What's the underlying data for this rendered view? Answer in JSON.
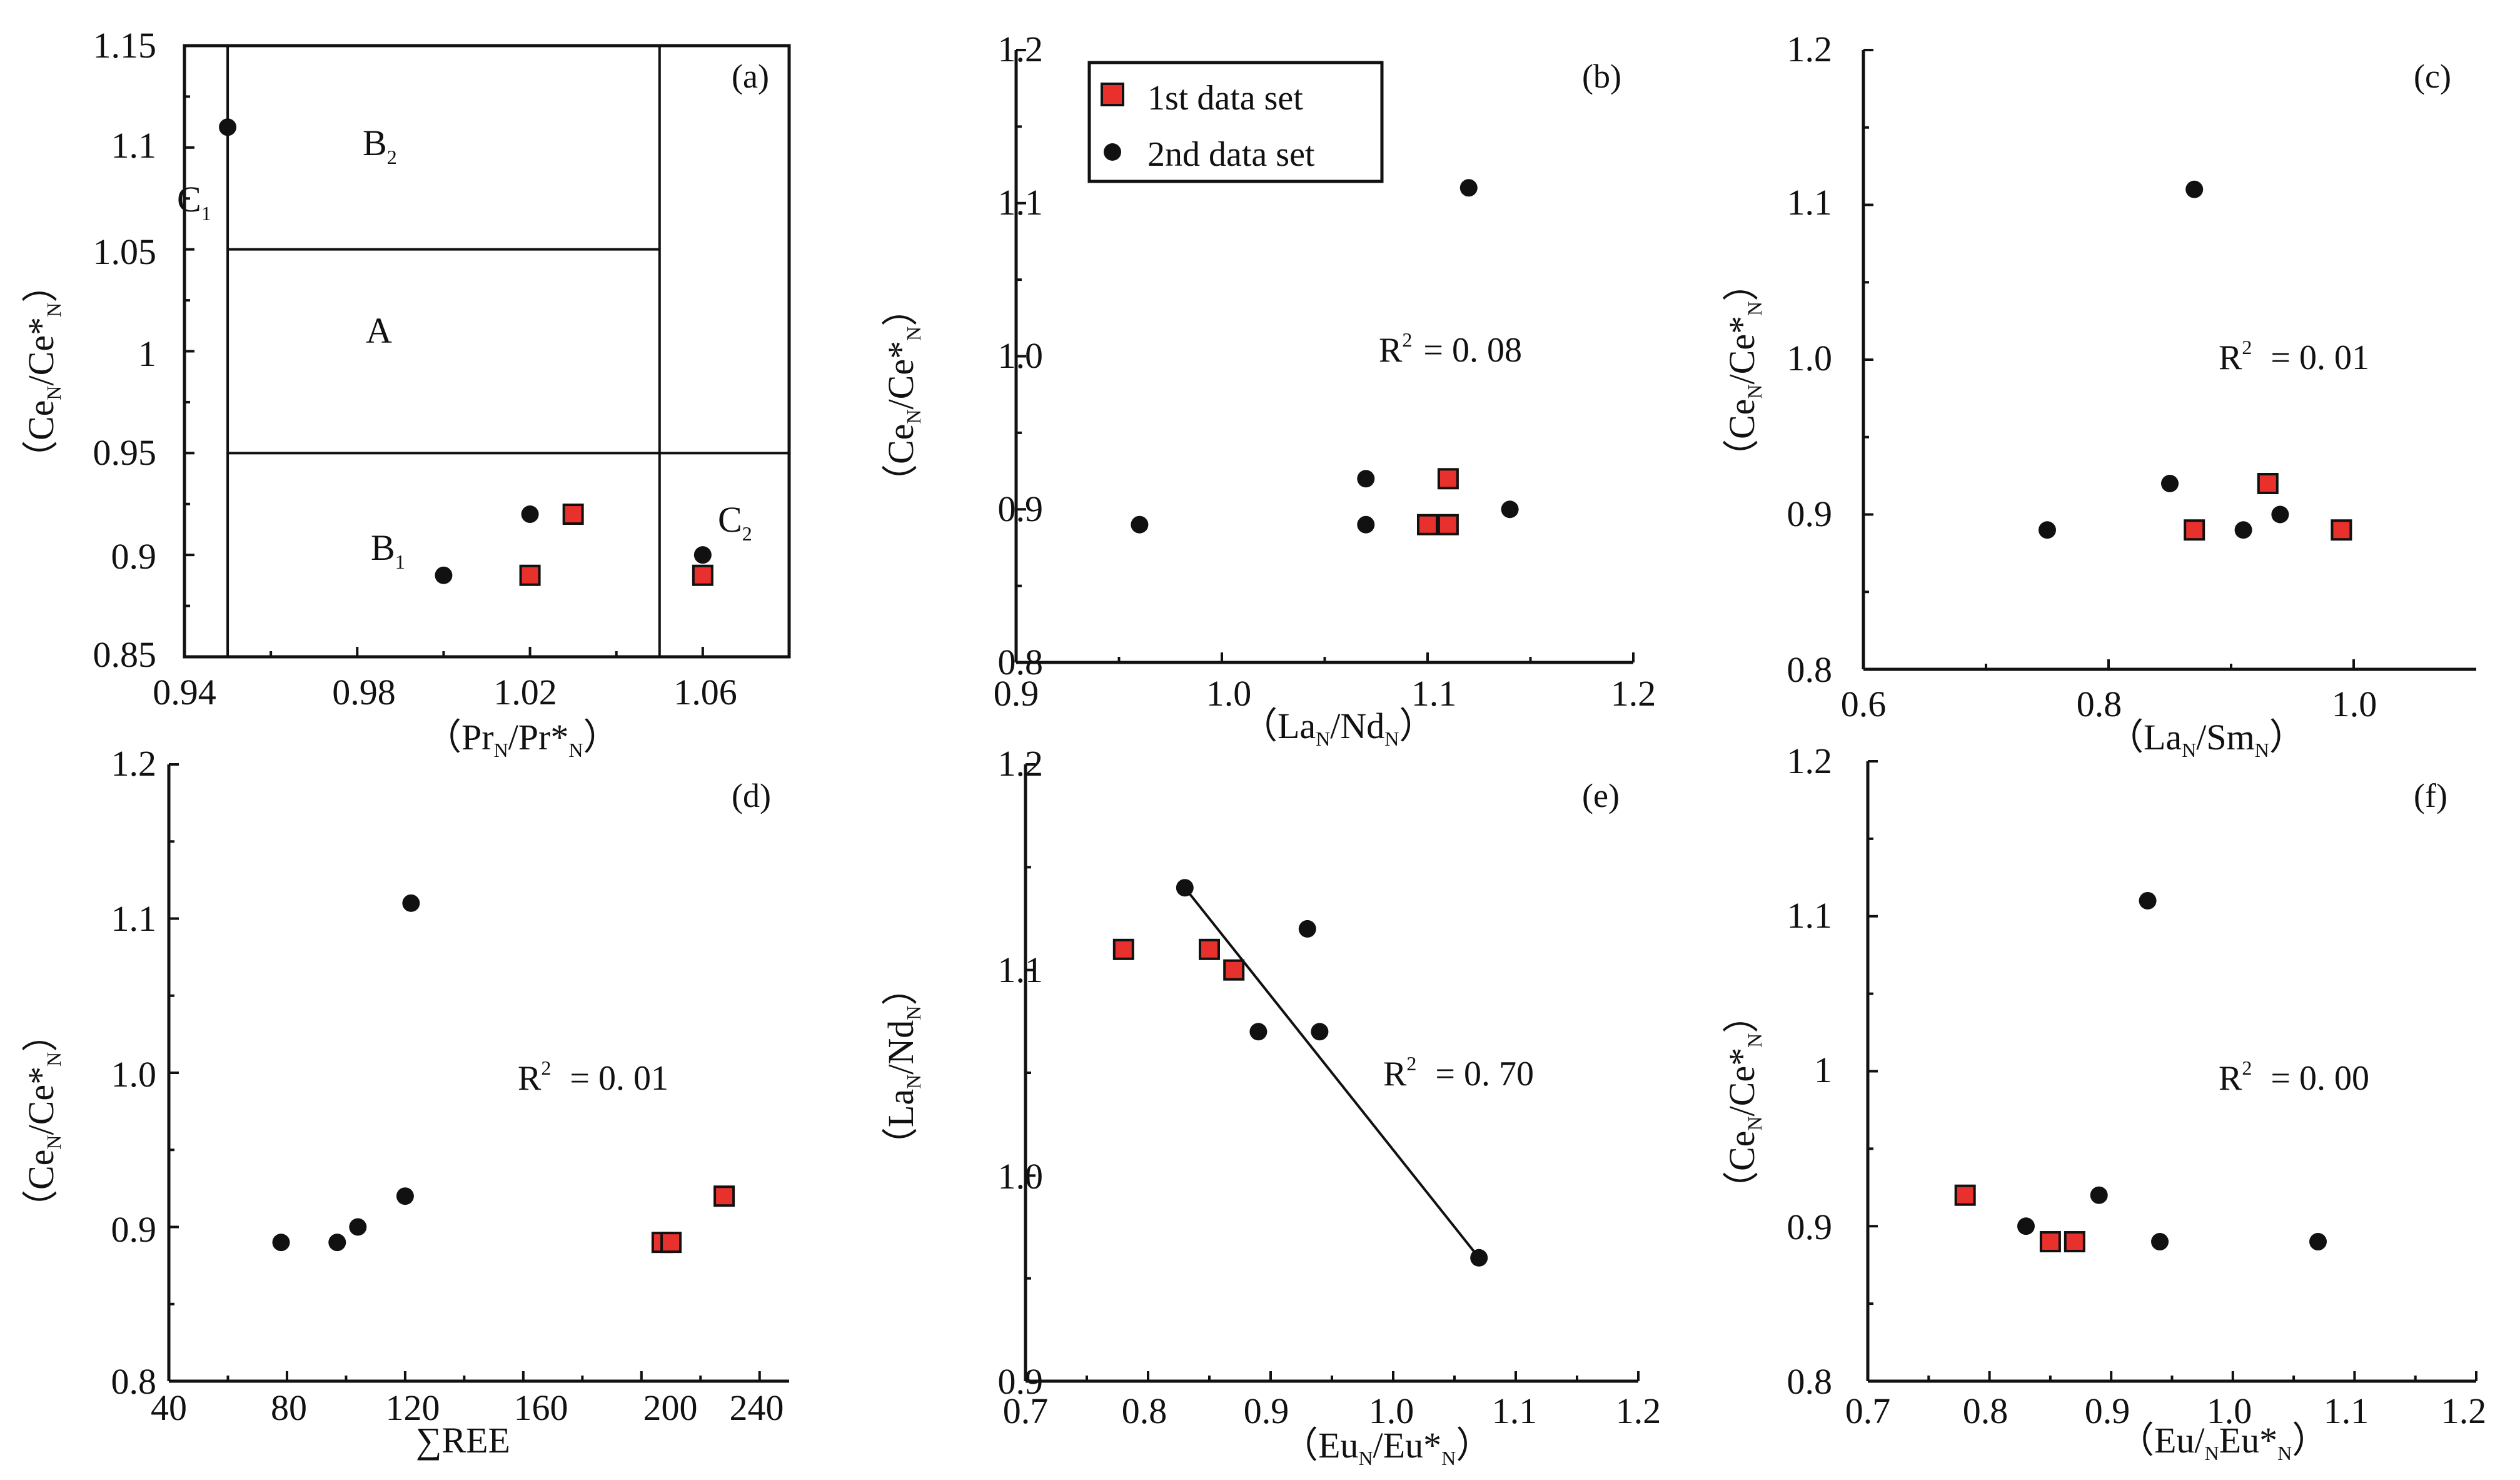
{
  "colors": {
    "first_set": "#e8302c",
    "second_set": "#111111",
    "axis": "#111111"
  },
  "legend": {
    "first": "1st data set",
    "second": "2nd data set"
  },
  "chart_data": [
    {
      "id": "a",
      "type": "scatter",
      "panel_label": "(a)",
      "xlabel": "（PrN/Pr*N）",
      "ylabel": "（CeN/Ce*N）",
      "xlim": [
        0.94,
        1.08
      ],
      "ylim": [
        0.85,
        1.15
      ],
      "xticks": [
        "0.94",
        "0.98",
        "1.02",
        "1.06"
      ],
      "yticks": [
        "0.85",
        "0.9",
        "0.95",
        "1",
        "1.05",
        "1.1",
        "1.15"
      ],
      "zones": {
        "A": "A",
        "B1": "B1",
        "B2": "B2",
        "C1": "C1",
        "C2": "C2"
      },
      "zone_boundaries": {
        "x": [
          0.95,
          1.05
        ],
        "y": [
          0.95,
          1.05
        ]
      },
      "series": [
        {
          "name": "1st data set",
          "points": [
            [
              1.03,
              0.92
            ],
            [
              1.02,
              0.89
            ],
            [
              1.06,
              0.89
            ]
          ]
        },
        {
          "name": "2nd data set",
          "points": [
            [
              0.95,
              1.11
            ],
            [
              1.02,
              0.92
            ],
            [
              1.0,
              0.89
            ],
            [
              1.06,
              0.9
            ]
          ]
        }
      ]
    },
    {
      "id": "b",
      "type": "scatter",
      "panel_label": "(b)",
      "xlabel": "（LaN/NdN）",
      "ylabel": "（CeN/Ce*N）",
      "xlim": [
        0.9,
        1.2
      ],
      "ylim": [
        0.8,
        1.2
      ],
      "xticks": [
        "0.9",
        "1.0",
        "1.1",
        "1.2"
      ],
      "yticks": [
        "0.8",
        "0.9",
        "1.0",
        "1.1",
        "1.2"
      ],
      "r2_text": "= 0. 08",
      "series": [
        {
          "name": "1st data set",
          "points": [
            [
              1.1,
              0.89
            ],
            [
              1.11,
              0.89
            ],
            [
              1.11,
              0.92
            ]
          ]
        },
        {
          "name": "2nd data set",
          "points": [
            [
              0.96,
              0.89
            ],
            [
              1.07,
              0.92
            ],
            [
              1.07,
              0.89
            ],
            [
              1.12,
              1.11
            ],
            [
              1.14,
              0.9
            ]
          ]
        }
      ]
    },
    {
      "id": "c",
      "type": "scatter",
      "panel_label": "(c)",
      "xlabel": "（LaN/SmN）",
      "ylabel": "（CeN/Ce*N）",
      "xlim": [
        0.6,
        1.1
      ],
      "ylim": [
        0.8,
        1.2
      ],
      "xticks": [
        "0.6",
        "0.8",
        "1.0"
      ],
      "yticks": [
        "0.8",
        "0.9",
        "1.0",
        "1.1",
        "1.2"
      ],
      "r2_text": "= 0. 01",
      "series": [
        {
          "name": "1st data set",
          "points": [
            [
              0.87,
              0.89
            ],
            [
              0.93,
              0.92
            ],
            [
              0.99,
              0.89
            ]
          ]
        },
        {
          "name": "2nd data set",
          "points": [
            [
              0.75,
              0.89
            ],
            [
              0.85,
              0.92
            ],
            [
              0.87,
              1.11
            ],
            [
              0.91,
              0.89
            ],
            [
              0.94,
              0.9
            ]
          ]
        }
      ]
    },
    {
      "id": "d",
      "type": "scatter",
      "panel_label": "(d)",
      "xlabel": "∑REE",
      "ylabel": "（CeN/Ce*N）",
      "xlim": [
        40,
        250
      ],
      "ylim": [
        0.8,
        1.2
      ],
      "xticks": [
        "40",
        "80",
        "120",
        "160",
        "200",
        "240"
      ],
      "yticks": [
        "0.8",
        "0.9",
        "1.0",
        "1.1",
        "1.2"
      ],
      "r2_text": "= 0. 01",
      "series": [
        {
          "name": "1st data set",
          "points": [
            [
              207,
              0.89
            ],
            [
              210,
              0.89
            ],
            [
              228,
              0.92
            ]
          ]
        },
        {
          "name": "2nd data set",
          "points": [
            [
              78,
              0.89
            ],
            [
              97,
              0.89
            ],
            [
              104,
              0.9
            ],
            [
              120,
              0.92
            ],
            [
              122,
              1.11
            ]
          ]
        }
      ]
    },
    {
      "id": "e",
      "type": "scatter",
      "panel_label": "(e)",
      "xlabel": "（EuN/Eu*N）",
      "ylabel": "（LaN/NdN）",
      "xlim": [
        0.7,
        1.2
      ],
      "ylim": [
        0.9,
        1.2
      ],
      "xticks": [
        "0.7",
        "0.8",
        "0.9",
        "1.0",
        "1.1",
        "1.2"
      ],
      "yticks": [
        "0.9",
        "1.0",
        "1.1",
        "1.2"
      ],
      "r2_text": "= 0. 70",
      "trendline": [
        [
          0.83,
          1.14
        ],
        [
          1.07,
          0.96
        ]
      ],
      "series": [
        {
          "name": "1st data set",
          "points": [
            [
              0.78,
              1.11
            ],
            [
              0.85,
              1.11
            ],
            [
              0.87,
              1.1
            ]
          ]
        },
        {
          "name": "2nd data set",
          "points": [
            [
              0.83,
              1.14
            ],
            [
              0.89,
              1.07
            ],
            [
              0.93,
              1.12
            ],
            [
              0.94,
              1.07
            ],
            [
              1.07,
              0.96
            ]
          ]
        }
      ]
    },
    {
      "id": "f",
      "type": "scatter",
      "panel_label": "(f)",
      "xlabel": "（Eu/NEu*N）",
      "ylabel": "（CeN/Ce*N）",
      "xlim": [
        0.7,
        1.2
      ],
      "ylim": [
        0.8,
        1.2
      ],
      "xticks": [
        "0.7",
        "0.8",
        "0.9",
        "1.0",
        "1.1",
        "1.2"
      ],
      "yticks": [
        "0.8",
        "0.9",
        "1",
        "1.1",
        "1.2"
      ],
      "r2_text": "= 0. 00",
      "series": [
        {
          "name": "1st data set",
          "points": [
            [
              0.78,
              0.92
            ],
            [
              0.85,
              0.89
            ],
            [
              0.87,
              0.89
            ]
          ]
        },
        {
          "name": "2nd data set",
          "points": [
            [
              0.83,
              0.9
            ],
            [
              0.89,
              0.92
            ],
            [
              0.93,
              1.11
            ],
            [
              0.94,
              0.89
            ],
            [
              1.07,
              0.89
            ]
          ]
        }
      ]
    }
  ]
}
